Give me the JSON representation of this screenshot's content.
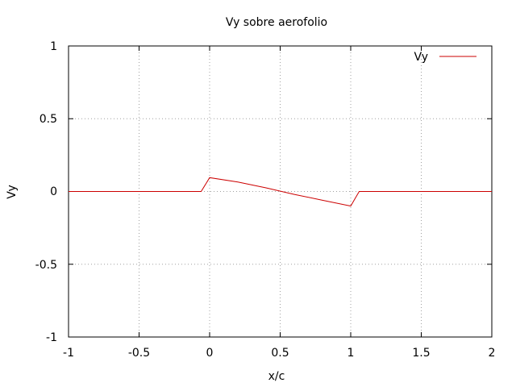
{
  "chart_data": {
    "type": "line",
    "title": "Vy sobre aerofolio",
    "xlabel": "x/c",
    "ylabel": "Vy",
    "xlim": [
      -1,
      2
    ],
    "ylim": [
      -1,
      1
    ],
    "xticks": [
      "-1",
      "-0.5",
      "0",
      "0.5",
      "1",
      "1.5",
      "2"
    ],
    "yticks": [
      "1",
      "0.5",
      "0",
      "-0.5",
      "-1"
    ],
    "grid": true,
    "legend_position": "top-right",
    "series": [
      {
        "name": "Vy",
        "color": "#cc0000",
        "x": [
          -1,
          -0.06,
          0.0,
          0.2,
          0.4,
          0.6,
          0.8,
          1.0,
          1.06,
          2.0
        ],
        "y": [
          0.0,
          0.0,
          0.095,
          0.065,
          0.025,
          -0.02,
          -0.06,
          -0.1,
          0.0,
          0.0
        ]
      }
    ]
  }
}
